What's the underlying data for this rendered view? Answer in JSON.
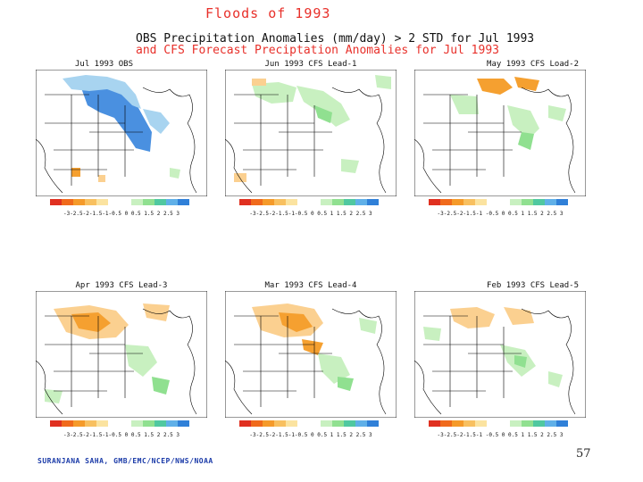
{
  "header": {
    "title": "Floods of 1993",
    "subtitle_line1": "OBS Precipitation Anomalies (mm/day) > 2 STD for Jul 1993",
    "subtitle_line2": "and CFS Forecast Preciptation Anomalies for Jul 1993"
  },
  "panels": [
    {
      "title": "Jul 1993 OBS",
      "style": "obs"
    },
    {
      "title": "Jun 1993 CFS Lead-1",
      "style": "lead1"
    },
    {
      "title": "May 1993 CFS Load-2",
      "style": "lead2"
    },
    {
      "title": "Apr 1993 CFS Lead-3",
      "style": "lead3"
    },
    {
      "title": "Mar 1993 CFS Lead-4",
      "style": "lead4"
    },
    {
      "title": "Feb 1993 CFS Lead-5",
      "style": "lead5"
    }
  ],
  "colorbar": {
    "labels_top": "-3-2.5-2-1.5-1-0.5 0 0.5   1.5 2 2.5 3",
    "labels_lead1": "-3-2.5-2-1.5-1-0.5 0  0.5  1  1.5  2  2.5  3",
    "labels_lead2": "-3-2.5-2-1.5-1 -0.5 0  0.5  1  1.5 2  2.5 3",
    "colors": [
      "#e03020",
      "#f06a1c",
      "#f59a2a",
      "#f8c060",
      "#fbe3a0",
      "#ffffff",
      "#ffffff",
      "#c8f0c0",
      "#90e090",
      "#50c8a0",
      "#60b0e8",
      "#3080d8"
    ]
  },
  "page_number": "57",
  "footer": "SURANJANA SAHA, GMB/EMC/NCEP/NWS/NOAA",
  "map_colors": {
    "blue_dark": "#4a90e0",
    "blue_light": "#a8d4f0",
    "green_light": "#c8f0c0",
    "green": "#90e090",
    "orange_light": "#fbd090",
    "orange": "#f5a030",
    "land_line": "#000000"
  }
}
